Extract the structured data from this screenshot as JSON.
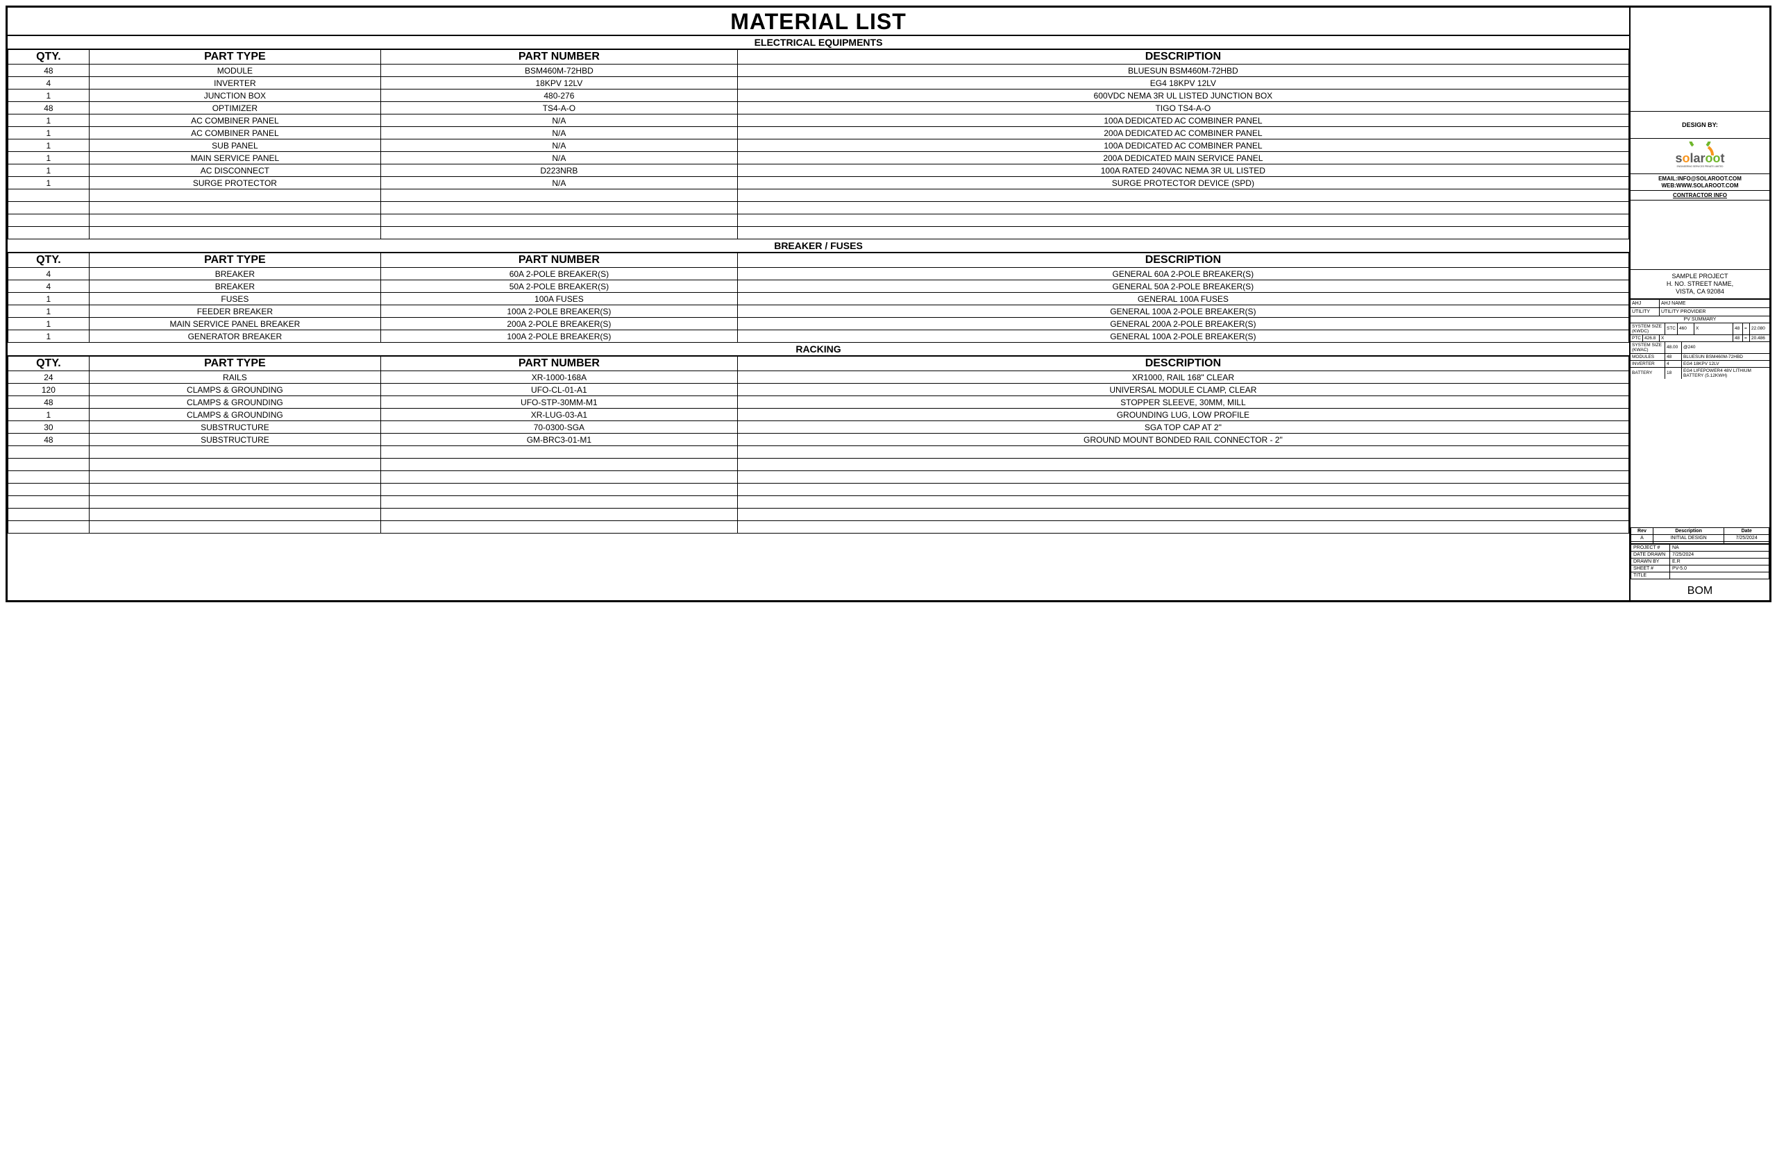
{
  "title": "MATERIAL LIST",
  "sections": [
    {
      "header": "ELECTRICAL EQUIPMENTS",
      "columns": [
        "QTY.",
        "PART TYPE",
        "PART NUMBER",
        "DESCRIPTION"
      ],
      "rows": [
        [
          "48",
          "MODULE",
          "BSM460M-72HBD",
          "BLUESUN BSM460M-72HBD"
        ],
        [
          "4",
          "INVERTER",
          "18KPV 12LV",
          "EG4 18KPV 12LV"
        ],
        [
          "1",
          "JUNCTION BOX",
          "480-276",
          "600VDC NEMA 3R UL LISTED JUNCTION BOX"
        ],
        [
          "48",
          "OPTIMIZER",
          "TS4-A-O",
          "TIGO TS4-A-O"
        ],
        [
          "1",
          "AC COMBINER PANEL",
          "N/A",
          "100A DEDICATED AC COMBINER PANEL"
        ],
        [
          "1",
          "AC COMBINER PANEL",
          "N/A",
          "200A DEDICATED AC COMBINER PANEL"
        ],
        [
          "1",
          "SUB PANEL",
          "N/A",
          "100A DEDICATED AC COMBINER PANEL"
        ],
        [
          "1",
          "MAIN SERVICE PANEL",
          "N/A",
          "200A DEDICATED MAIN SERVICE PANEL"
        ],
        [
          "1",
          "AC DISCONNECT",
          "D223NRB",
          "100A RATED 240VAC NEMA 3R UL LISTED"
        ],
        [
          "1",
          "SURGE PROTECTOR",
          "N/A",
          "SURGE PROTECTOR DEVICE (SPD)"
        ],
        [
          "",
          "",
          "",
          ""
        ],
        [
          "",
          "",
          "",
          ""
        ],
        [
          "",
          "",
          "",
          ""
        ],
        [
          "",
          "",
          "",
          ""
        ]
      ]
    },
    {
      "header": "BREAKER / FUSES",
      "columns": [
        "QTY.",
        "PART TYPE",
        "PART NUMBER",
        "DESCRIPTION"
      ],
      "rows": [
        [
          "4",
          "BREAKER",
          "60A 2-POLE BREAKER(S)",
          "GENERAL 60A 2-POLE BREAKER(S)"
        ],
        [
          "4",
          "BREAKER",
          "50A 2-POLE BREAKER(S)",
          "GENERAL 50A 2-POLE BREAKER(S)"
        ],
        [
          "1",
          "FUSES",
          "100A FUSES",
          "GENERAL 100A FUSES"
        ],
        [
          "1",
          "FEEDER BREAKER",
          "100A 2-POLE BREAKER(S)",
          "GENERAL 100A 2-POLE BREAKER(S)"
        ],
        [
          "1",
          "MAIN SERVICE PANEL BREAKER",
          "200A 2-POLE BREAKER(S)",
          "GENERAL 200A 2-POLE BREAKER(S)"
        ],
        [
          "1",
          "GENERATOR BREAKER",
          "100A 2-POLE BREAKER(S)",
          "GENERAL 100A 2-POLE BREAKER(S)"
        ]
      ]
    },
    {
      "header": "RACKING",
      "columns": [
        "QTY.",
        "PART TYPE",
        "PART NUMBER",
        "DESCRIPTION"
      ],
      "rows": [
        [
          "24",
          "RAILS",
          "XR-1000-168A",
          "XR1000, RAIL 168\" CLEAR"
        ],
        [
          "120",
          "CLAMPS & GROUNDING",
          "UFO-CL-01-A1",
          "UNIVERSAL MODULE CLAMP, CLEAR"
        ],
        [
          "48",
          "CLAMPS & GROUNDING",
          "UFO-STP-30MM-M1",
          "STOPPER SLEEVE, 30MM, MILL"
        ],
        [
          "1",
          "CLAMPS & GROUNDING",
          "XR-LUG-03-A1",
          "GROUNDING LUG, LOW PROFILE"
        ],
        [
          "30",
          "SUBSTRUCTURE",
          "70-0300-SGA",
          "SGA TOP CAP AT 2\""
        ],
        [
          "48",
          "SUBSTRUCTURE",
          "GM-BRC3-01-M1",
          "GROUND MOUNT BONDED RAIL CONNECTOR - 2\""
        ],
        [
          "",
          "",
          "",
          ""
        ],
        [
          "",
          "",
          "",
          ""
        ],
        [
          "",
          "",
          "",
          ""
        ],
        [
          "",
          "",
          "",
          ""
        ],
        [
          "",
          "",
          "",
          ""
        ],
        [
          "",
          "",
          "",
          ""
        ],
        [
          "",
          "",
          "",
          ""
        ]
      ]
    }
  ],
  "side": {
    "design_by": "DESIGN BY:",
    "logo_text": "solaroot",
    "logo_sub": "ENGINEERING SERVICES PRIVATE LIMITED",
    "email": "EMAIL:INFO@SOLAROOT.COM",
    "web": "WEB:WWW.SOLAROOT.COM",
    "contractor_info": "CONTRACTOR INFO",
    "project_name": "SAMPLE PROJECT",
    "project_addr1": "H. NO. STREET NAME,",
    "project_addr2": "VISTA, CA 92084",
    "ahj_label": "AHJ",
    "ahj_value": "AHJ NAME",
    "utility_label": "UTILITY",
    "utility_value": "UTILITY PROVIDER",
    "pv_summary_hdr": "PV SUMMARY",
    "pv_rows": [
      {
        "label": "SYSTEM SIZE (KWDC)",
        "sub1": "STC",
        "v1": "460",
        "op1": "X",
        "v2": "48",
        "op2": "=",
        "v3": "22.080"
      },
      {
        "label": "",
        "sub1": "PTC",
        "v1": "426.8",
        "op1": "X",
        "v2": "48",
        "op2": "=",
        "v3": "20.486"
      },
      {
        "label": "SYSTEM SIZE (KWAC)",
        "sub1": "",
        "v1": "48.00",
        "op1": "@240",
        "v2": "",
        "op2": "",
        "v3": ""
      },
      {
        "label": "MODULES",
        "sub1": "",
        "v1": "48",
        "op1": "BLUESUN BSM460M-72HBD",
        "v2": "",
        "op2": "",
        "v3": ""
      },
      {
        "label": "INVERTER",
        "sub1": "",
        "v1": "4",
        "op1": "EG4 18KPV 12LV",
        "v2": "",
        "op2": "",
        "v3": ""
      },
      {
        "label": "BATTERY",
        "sub1": "",
        "v1": "18",
        "op1": "EG4 LIFEPOWER4 48V LITHIUM BATTERY (5.12KWH)",
        "v2": "",
        "op2": "",
        "v3": ""
      }
    ],
    "rev_hdr": [
      "Rev",
      "Description",
      "Date"
    ],
    "rev_rows": [
      [
        "A",
        "INITIAL DESIGN",
        "7/25/2024"
      ],
      [
        "",
        "",
        ""
      ]
    ],
    "meta": [
      [
        "PROJECT #",
        "NA"
      ],
      [
        "DATE DRAWN",
        "7/25/2024"
      ],
      [
        "DRAWN BY",
        "E.R"
      ],
      [
        "SHEET #",
        "PV-5.0"
      ],
      [
        "TITLE",
        ""
      ]
    ],
    "bom": "BOM"
  },
  "colors": {
    "logo_green": "#6fb62c",
    "logo_orange": "#f7941d",
    "border": "#000000",
    "bg": "#ffffff"
  }
}
